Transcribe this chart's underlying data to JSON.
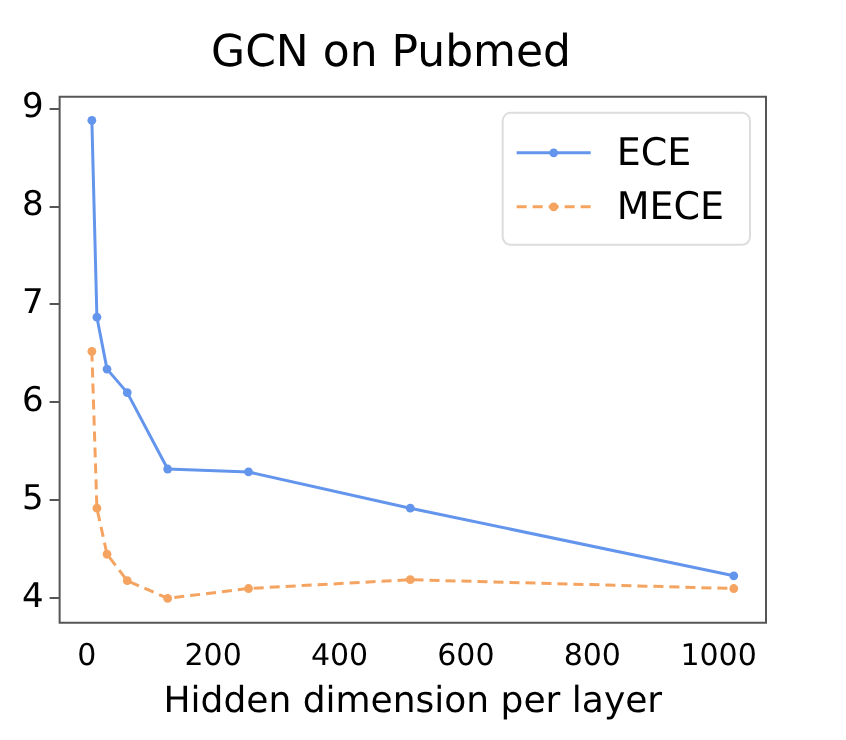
{
  "chart_data": {
    "type": "line",
    "title": "GCN on Pubmed",
    "xlabel": "Hidden dimension per layer",
    "x": [
      8,
      16,
      32,
      64,
      128,
      256,
      512,
      1024
    ],
    "series": [
      {
        "name": "ECE",
        "color": "#6495ed",
        "values": [
          8.88,
          6.87,
          6.34,
          6.1,
          5.32,
          5.29,
          4.92,
          4.23
        ],
        "line_style": "solid"
      },
      {
        "name": "MECE",
        "color": "#f4a460",
        "values": [
          6.52,
          4.92,
          4.45,
          4.18,
          4.0,
          4.1,
          4.19,
          4.1
        ],
        "line_style": "dashed"
      }
    ],
    "xlim": [
      -43,
      1075
    ],
    "xticks": [
      0,
      200,
      400,
      600,
      800,
      1000
    ],
    "ylim": [
      3.75,
      9.12
    ],
    "yticks": [
      4,
      5,
      6,
      7,
      8,
      9
    ],
    "grid": false,
    "legend": "top right",
    "marker": "circle"
  }
}
